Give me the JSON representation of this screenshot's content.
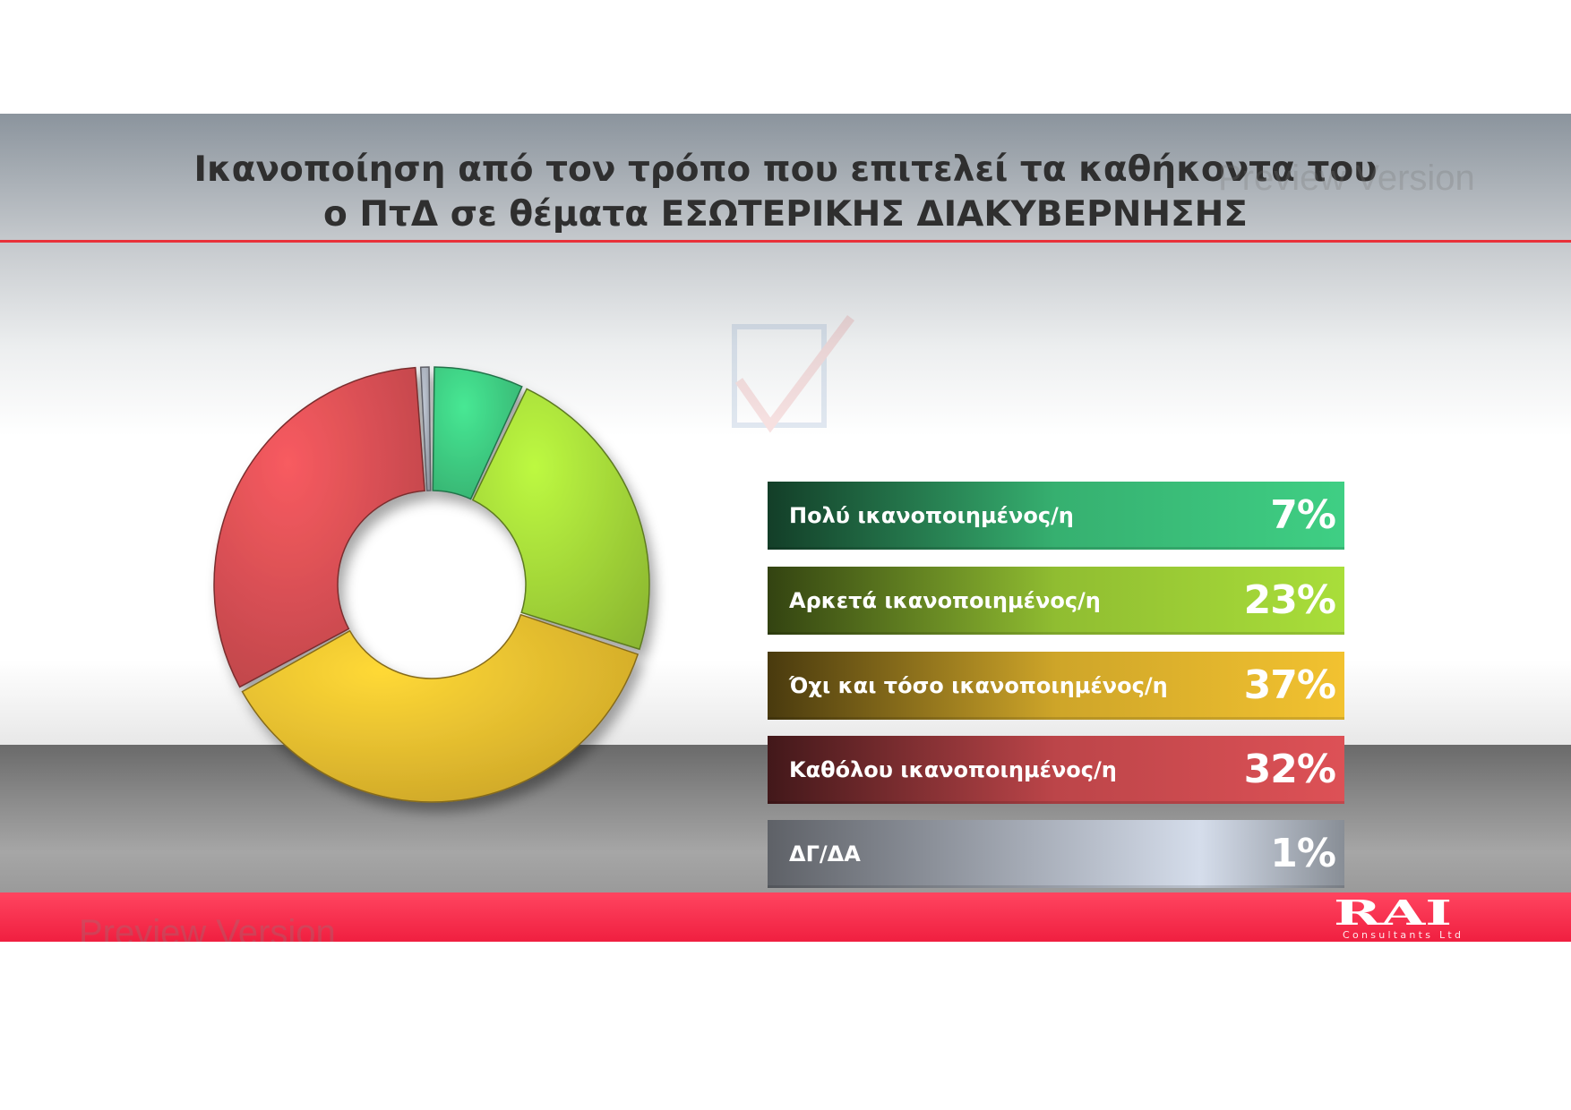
{
  "title": {
    "line1": "Ικανοποίηση από τον τρόπο που επιτελεί τα καθήκοντα του",
    "line2": "ο ΠτΔ σε θέματα ΕΣΩΤΕΡΙΚΗΣ ΔΙΑΚΥΒΕΡΝΗΣΗΣ"
  },
  "watermark": "Preview Version",
  "logo": {
    "name": "RAI",
    "subtitle": "Consultants Ltd"
  },
  "colors": {
    "title_rule": "#e8323a",
    "bottom_bar": "#f0304a"
  },
  "chart_data": {
    "type": "pie",
    "variant": "donut",
    "title": "",
    "categories": [
      "Πολύ ικανοποιημένος/η",
      "Αρκετά ικανοποιημένος/η",
      "Όχι και τόσο ικανοποιημένος/η",
      "Καθόλου ικανοποιημένος/η",
      "ΔΓ/ΔΑ"
    ],
    "values": [
      7,
      23,
      37,
      32,
      1
    ],
    "value_labels": [
      "7%",
      "23%",
      "37%",
      "32%",
      "1%"
    ],
    "unit": "%",
    "colors": [
      "#3fcf84",
      "#a9de3a",
      "#f2c230",
      "#dd5156",
      "#aab1bc"
    ],
    "legend_position": "right"
  }
}
